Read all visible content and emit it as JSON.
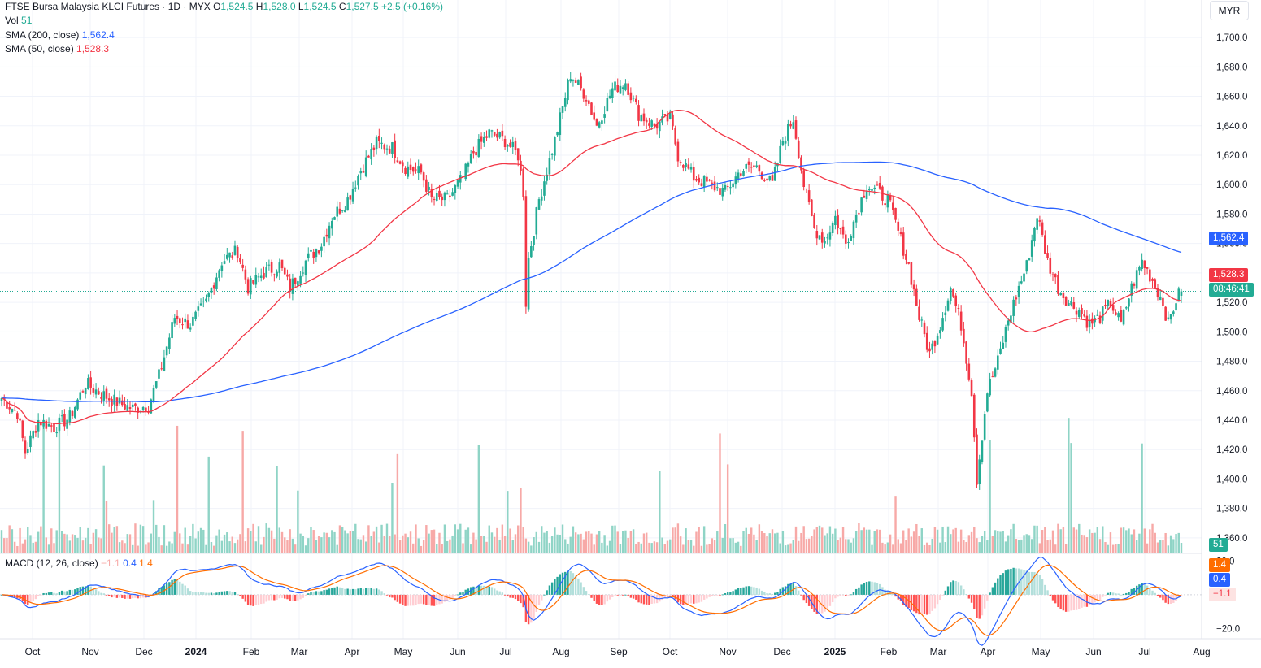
{
  "header": {
    "symbol": "FTSE Bursa Malaysia KLCI Futures · 1D · MYX",
    "ohlc": [
      {
        "k": "O",
        "v": "1,524.5"
      },
      {
        "k": "H",
        "v": "1,528.0"
      },
      {
        "k": "L",
        "v": "1,524.5"
      },
      {
        "k": "C",
        "v": "1,527.5"
      }
    ],
    "change": "+2.5 (+0.16%)",
    "vol_label": "Vol",
    "vol_value": "51",
    "sma200_label": "SMA (200, close)",
    "sma200_value": "1,562.4",
    "sma50_label": "SMA (50, close)",
    "sma50_value": "1,528.3",
    "macd_label": "MACD (12, 26, close)",
    "macd_hist": "−1.1",
    "macd_line": "0.4",
    "macd_signal": "1.4"
  },
  "currency": "MYR",
  "price_tags": {
    "sma200": "1,562.4",
    "sma50": "1,528.3",
    "countdown": "08:46:41",
    "volume": "51",
    "macd_signal": "1.4",
    "macd_line": "0.4",
    "macd_hist": "−1.1"
  },
  "colors": {
    "up": "#22ab94",
    "down": "#f23645",
    "sma200": "#2962ff",
    "sma50": "#f23645",
    "macd": "#2962ff",
    "signal": "#ff6d00",
    "vol_up": "#8fd4c6",
    "vol_down": "#f7a9a7",
    "grid": "#f0f3fa"
  },
  "chart_data": {
    "type": "candlestick",
    "price_axis": {
      "ticks": [
        "1,700.0",
        "1,680.0",
        "1,660.0",
        "1,640.0",
        "1,620.0",
        "1,600.0",
        "1,580.0",
        "1,560.0",
        "1,540.0",
        "1,520.0",
        "1,500.0",
        "1,480.0",
        "1,460.0",
        "1,440.0",
        "1,420.0",
        "1,400.0",
        "1,380.0",
        "1,360.0"
      ],
      "range": [
        1350,
        1710
      ]
    },
    "macd_axis": {
      "ticks": [
        "20.0",
        "−20.0"
      ],
      "range": [
        -26,
        24
      ]
    },
    "x_axis": [
      "Oct",
      "Nov",
      "Dec",
      "2024",
      "Feb",
      "Mar",
      "Apr",
      "May",
      "Jun",
      "Jul",
      "Aug",
      "Sep",
      "Oct",
      "Nov",
      "Dec",
      "2025",
      "Feb",
      "Mar",
      "Apr",
      "May",
      "Jun",
      "Jul",
      "Aug"
    ],
    "close_path": [
      [
        0,
        1455
      ],
      [
        6,
        1445
      ],
      [
        9,
        1418
      ],
      [
        14,
        1440
      ],
      [
        20,
        1435
      ],
      [
        26,
        1442
      ],
      [
        32,
        1465
      ],
      [
        38,
        1458
      ],
      [
        44,
        1452
      ],
      [
        50,
        1448
      ],
      [
        56,
        1450
      ],
      [
        60,
        1470
      ],
      [
        66,
        1510
      ],
      [
        72,
        1505
      ],
      [
        78,
        1520
      ],
      [
        84,
        1548
      ],
      [
        90,
        1555
      ],
      [
        94,
        1530
      ],
      [
        100,
        1540
      ],
      [
        106,
        1545
      ],
      [
        110,
        1530
      ],
      [
        116,
        1548
      ],
      [
        122,
        1560
      ],
      [
        126,
        1578
      ],
      [
        132,
        1590
      ],
      [
        137,
        1610
      ],
      [
        143,
        1628
      ],
      [
        149,
        1625
      ],
      [
        154,
        1612
      ],
      [
        160,
        1608
      ],
      [
        164,
        1590
      ],
      [
        170,
        1590
      ],
      [
        176,
        1605
      ],
      [
        180,
        1622
      ],
      [
        186,
        1635
      ],
      [
        192,
        1630
      ],
      [
        197,
        1620
      ],
      [
        199,
        1595
      ],
      [
        200,
        1520
      ],
      [
        201,
        1550
      ],
      [
        205,
        1590
      ],
      [
        211,
        1630
      ],
      [
        217,
        1675
      ],
      [
        223,
        1660
      ],
      [
        227,
        1640
      ],
      [
        233,
        1665
      ],
      [
        238,
        1670
      ],
      [
        243,
        1648
      ],
      [
        249,
        1640
      ],
      [
        255,
        1645
      ],
      [
        258,
        1620
      ],
      [
        264,
        1605
      ],
      [
        270,
        1600
      ],
      [
        276,
        1595
      ],
      [
        282,
        1610
      ],
      [
        288,
        1612
      ],
      [
        294,
        1600
      ],
      [
        298,
        1630
      ],
      [
        302,
        1645
      ],
      [
        306,
        1600
      ],
      [
        310,
        1570
      ],
      [
        314,
        1562
      ],
      [
        318,
        1578
      ],
      [
        322,
        1560
      ],
      [
        326,
        1580
      ],
      [
        330,
        1600
      ],
      [
        334,
        1595
      ],
      [
        338,
        1590
      ],
      [
        342,
        1568
      ],
      [
        346,
        1545
      ],
      [
        350,
        1510
      ],
      [
        354,
        1485
      ],
      [
        358,
        1505
      ],
      [
        362,
        1530
      ],
      [
        366,
        1505
      ],
      [
        370,
        1460
      ],
      [
        372,
        1400
      ],
      [
        376,
        1460
      ],
      [
        380,
        1480
      ],
      [
        384,
        1508
      ],
      [
        388,
        1530
      ],
      [
        391,
        1545
      ],
      [
        395,
        1580
      ],
      [
        399,
        1548
      ],
      [
        403,
        1530
      ],
      [
        407,
        1520
      ],
      [
        411,
        1515
      ],
      [
        415,
        1505
      ],
      [
        419,
        1510
      ],
      [
        423,
        1520
      ],
      [
        427,
        1505
      ],
      [
        431,
        1530
      ],
      [
        435,
        1548
      ],
      [
        439,
        1535
      ],
      [
        443,
        1520
      ],
      [
        445,
        1505
      ],
      [
        448,
        1522
      ],
      [
        450,
        1527.5
      ]
    ],
    "current_close": 1527.5,
    "sma200_last": 1562.4,
    "sma50_last": 1528.3,
    "volume_last": 51,
    "macd_last": {
      "macd": 0.4,
      "signal": 1.4,
      "histogram": -1.1
    }
  }
}
